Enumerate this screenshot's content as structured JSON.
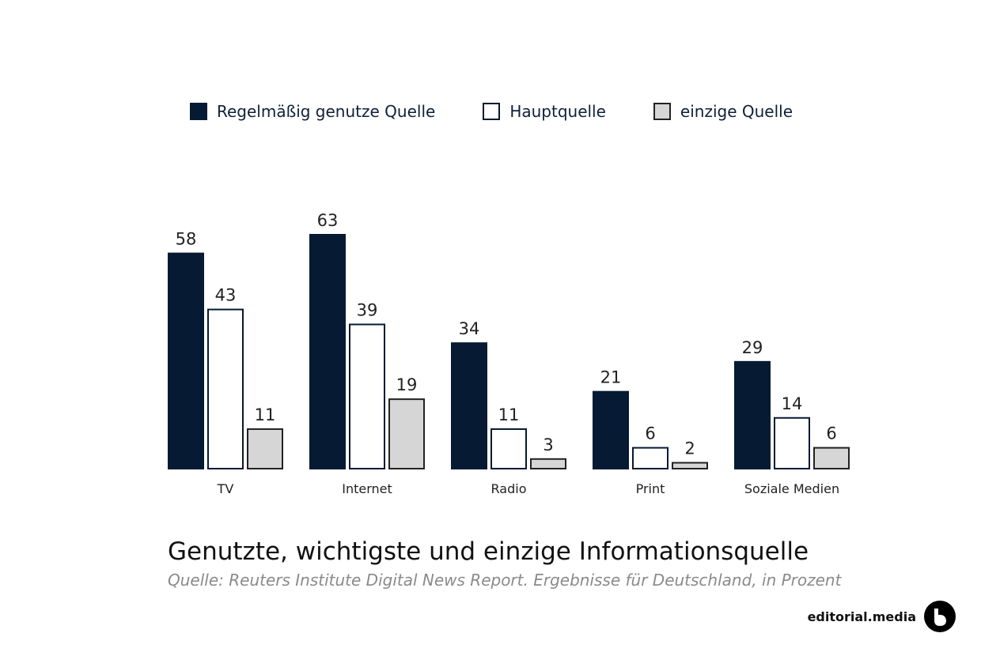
{
  "colors": {
    "regular": "#061a33",
    "main": "#ffffff",
    "only": "#d6d6d6",
    "stroke": "#061a33"
  },
  "legend": [
    {
      "label": "Regelmäßig genutze Quelle",
      "style": "regular"
    },
    {
      "label": "Hauptquelle",
      "style": "main"
    },
    {
      "label": "einzige Quelle",
      "style": "only"
    }
  ],
  "chart_data": {
    "type": "bar",
    "categories": [
      "TV",
      "Internet",
      "Radio",
      "Print",
      "Soziale Medien"
    ],
    "series": [
      {
        "name": "Regelmäßig genutze Quelle",
        "values": [
          58,
          63,
          34,
          21,
          29
        ]
      },
      {
        "name": "Hauptquelle",
        "values": [
          43,
          39,
          11,
          6,
          14
        ]
      },
      {
        "name": "einzige Quelle",
        "values": [
          11,
          19,
          3,
          2,
          6
        ]
      }
    ],
    "title": "Genutzte, wichtigste und einzige Informationsquelle",
    "subtitle": "Quelle: Reuters Institute Digital News Report. Ergebnisse für Deutschland, in Prozent",
    "xlabel": "",
    "ylabel": "",
    "ylim": [
      0,
      63
    ],
    "grid": false,
    "legend_position": "top"
  },
  "brand": {
    "name": "editorial.media",
    "logo_icon": "editorial-media-logo-icon"
  }
}
